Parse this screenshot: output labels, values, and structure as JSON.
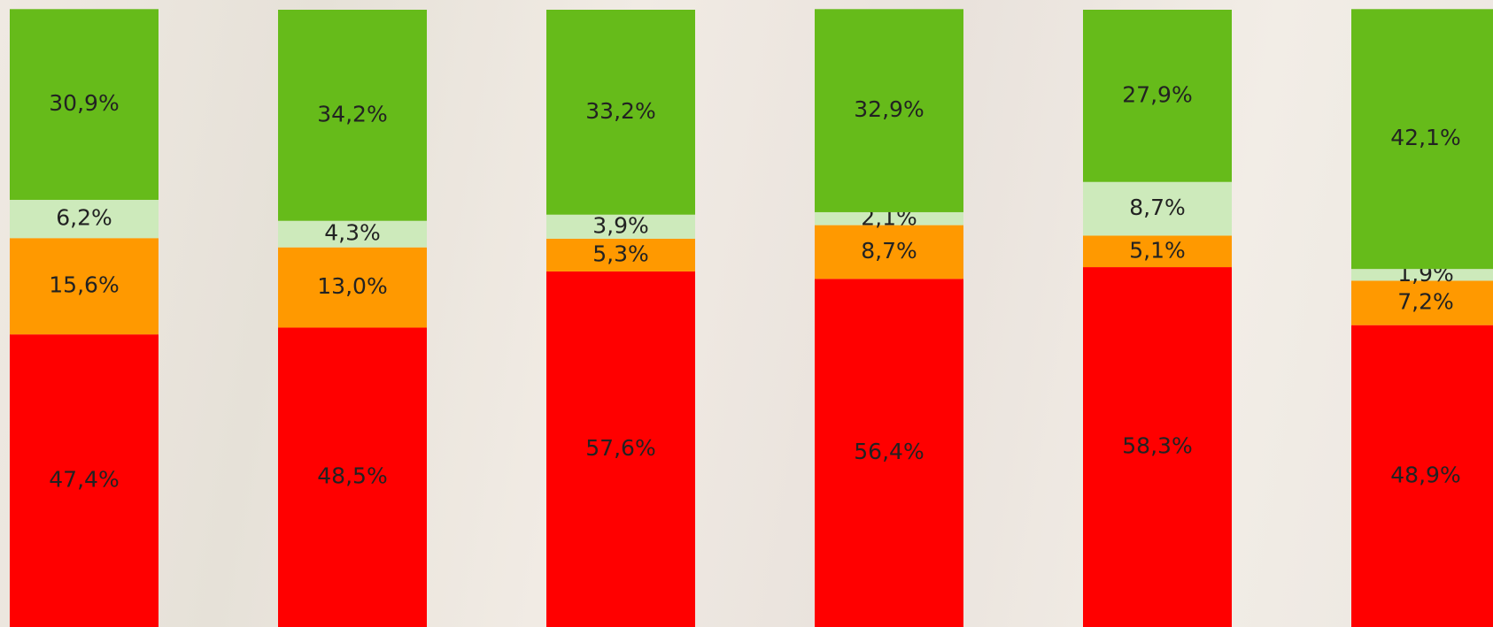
{
  "chart_data": {
    "type": "stacked_bar",
    "categories": [
      null,
      null,
      null,
      null,
      null,
      null
    ],
    "ylim": [
      0,
      100
    ],
    "series": [
      {
        "color": "#ff0000",
        "values": [
          47.4,
          48.5,
          57.6,
          56.4,
          58.3,
          48.9
        ],
        "value_labels": [
          "47,4%",
          "48,5%",
          "57,6%",
          "56,4%",
          "58,3%",
          "48,9%"
        ]
      },
      {
        "color": "#ff9900",
        "values": [
          15.6,
          13.0,
          5.3,
          8.7,
          5.1,
          7.2
        ],
        "value_labels": [
          "15,6%",
          "13,0%",
          "5,3%",
          "8,7%",
          "5,1%",
          "7,2%"
        ]
      },
      {
        "color": "#cdeabb",
        "values": [
          6.2,
          4.3,
          3.9,
          2.1,
          8.7,
          1.9
        ],
        "value_labels": [
          "6,2%",
          "4,3%",
          "3,9%",
          "2,1%",
          "8,7%",
          "1,9%"
        ]
      },
      {
        "color": "#66bb1a",
        "values": [
          30.9,
          34.2,
          33.2,
          32.9,
          27.9,
          42.1
        ],
        "value_labels": [
          "30,9%",
          "34,2%",
          "33,2%",
          "32,9%",
          "27,9%",
          "42,1%"
        ]
      }
    ]
  }
}
